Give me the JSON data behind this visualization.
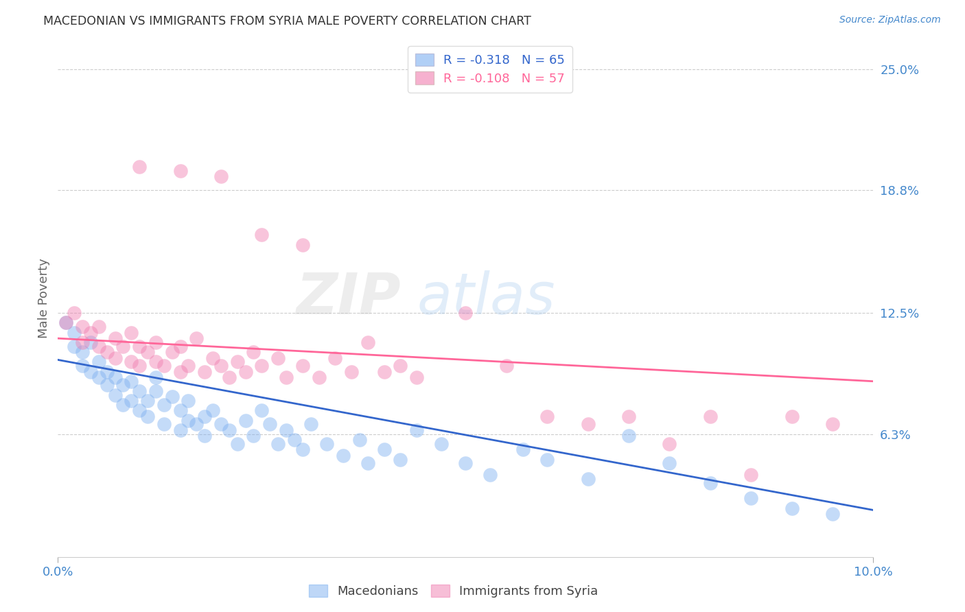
{
  "title": "MACEDONIAN VS IMMIGRANTS FROM SYRIA MALE POVERTY CORRELATION CHART",
  "source": "Source: ZipAtlas.com",
  "ylabel_label": "Male Poverty",
  "right_ytick_labels": [
    "25.0%",
    "18.8%",
    "12.5%",
    "6.3%"
  ],
  "right_ytick_values": [
    0.25,
    0.188,
    0.125,
    0.063
  ],
  "xlim": [
    0.0,
    0.1
  ],
  "ylim": [
    0.0,
    0.265
  ],
  "legend1_R": "-0.318",
  "legend1_N": "65",
  "legend2_R": "-0.108",
  "legend2_N": "57",
  "macedonian_color": "#7EB0F0",
  "syria_color": "#F07EB0",
  "macedonian_line_color": "#3366CC",
  "syria_line_color": "#FF6699",
  "bg_color": "#FFFFFF",
  "watermark": "ZIPatlas",
  "mac_line_x0": 0.0,
  "mac_line_y0": 0.101,
  "mac_line_x1": 0.1,
  "mac_line_y1": 0.024,
  "syr_line_x0": 0.0,
  "syr_line_y0": 0.112,
  "syr_line_x1": 0.1,
  "syr_line_y1": 0.09,
  "macedonian_x": [
    0.001,
    0.002,
    0.002,
    0.003,
    0.003,
    0.004,
    0.004,
    0.005,
    0.005,
    0.006,
    0.006,
    0.007,
    0.007,
    0.008,
    0.008,
    0.009,
    0.009,
    0.01,
    0.01,
    0.011,
    0.011,
    0.012,
    0.012,
    0.013,
    0.013,
    0.014,
    0.015,
    0.015,
    0.016,
    0.016,
    0.017,
    0.018,
    0.018,
    0.019,
    0.02,
    0.021,
    0.022,
    0.023,
    0.024,
    0.025,
    0.026,
    0.027,
    0.028,
    0.029,
    0.03,
    0.031,
    0.033,
    0.035,
    0.037,
    0.038,
    0.04,
    0.042,
    0.044,
    0.047,
    0.05,
    0.053,
    0.057,
    0.06,
    0.065,
    0.07,
    0.075,
    0.08,
    0.085,
    0.09,
    0.095
  ],
  "macedonian_y": [
    0.12,
    0.115,
    0.108,
    0.105,
    0.098,
    0.11,
    0.095,
    0.092,
    0.1,
    0.088,
    0.095,
    0.083,
    0.092,
    0.078,
    0.088,
    0.08,
    0.09,
    0.075,
    0.085,
    0.072,
    0.08,
    0.085,
    0.092,
    0.078,
    0.068,
    0.082,
    0.075,
    0.065,
    0.07,
    0.08,
    0.068,
    0.072,
    0.062,
    0.075,
    0.068,
    0.065,
    0.058,
    0.07,
    0.062,
    0.075,
    0.068,
    0.058,
    0.065,
    0.06,
    0.055,
    0.068,
    0.058,
    0.052,
    0.06,
    0.048,
    0.055,
    0.05,
    0.065,
    0.058,
    0.048,
    0.042,
    0.055,
    0.05,
    0.04,
    0.062,
    0.048,
    0.038,
    0.03,
    0.025,
    0.022
  ],
  "syria_x": [
    0.001,
    0.002,
    0.003,
    0.003,
    0.004,
    0.005,
    0.005,
    0.006,
    0.007,
    0.007,
    0.008,
    0.009,
    0.009,
    0.01,
    0.01,
    0.011,
    0.012,
    0.012,
    0.013,
    0.014,
    0.015,
    0.015,
    0.016,
    0.017,
    0.018,
    0.019,
    0.02,
    0.021,
    0.022,
    0.023,
    0.024,
    0.025,
    0.027,
    0.028,
    0.03,
    0.032,
    0.034,
    0.036,
    0.038,
    0.04,
    0.042,
    0.044,
    0.05,
    0.055,
    0.06,
    0.065,
    0.07,
    0.075,
    0.08,
    0.085,
    0.09,
    0.095,
    0.01,
    0.015,
    0.02,
    0.025,
    0.03
  ],
  "syria_y": [
    0.12,
    0.125,
    0.118,
    0.11,
    0.115,
    0.108,
    0.118,
    0.105,
    0.112,
    0.102,
    0.108,
    0.1,
    0.115,
    0.098,
    0.108,
    0.105,
    0.1,
    0.11,
    0.098,
    0.105,
    0.095,
    0.108,
    0.098,
    0.112,
    0.095,
    0.102,
    0.098,
    0.092,
    0.1,
    0.095,
    0.105,
    0.098,
    0.102,
    0.092,
    0.098,
    0.092,
    0.102,
    0.095,
    0.11,
    0.095,
    0.098,
    0.092,
    0.125,
    0.098,
    0.072,
    0.068,
    0.072,
    0.058,
    0.072,
    0.042,
    0.072,
    0.068,
    0.2,
    0.198,
    0.195,
    0.165,
    0.16
  ]
}
